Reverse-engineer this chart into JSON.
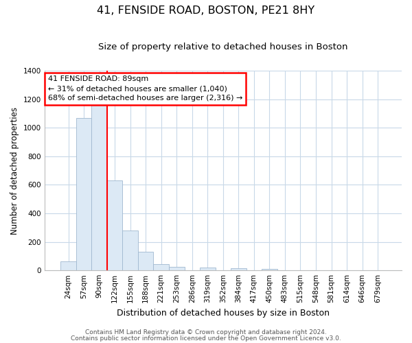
{
  "title": "41, FENSIDE ROAD, BOSTON, PE21 8HY",
  "subtitle": "Size of property relative to detached houses in Boston",
  "xlabel": "Distribution of detached houses by size in Boston",
  "ylabel": "Number of detached properties",
  "bar_labels": [
    "24sqm",
    "57sqm",
    "90sqm",
    "122sqm",
    "155sqm",
    "188sqm",
    "221sqm",
    "253sqm",
    "286sqm",
    "319sqm",
    "352sqm",
    "384sqm",
    "417sqm",
    "450sqm",
    "483sqm",
    "515sqm",
    "548sqm",
    "581sqm",
    "614sqm",
    "646sqm",
    "679sqm"
  ],
  "bar_values": [
    65,
    1070,
    1160,
    630,
    280,
    130,
    45,
    25,
    0,
    20,
    0,
    15,
    0,
    12,
    0,
    0,
    0,
    0,
    0,
    0,
    0
  ],
  "bar_color_fill": "#dce9f5",
  "bar_color_edge": "#a0b8d0",
  "red_line_x": 2,
  "annotation_text_line1": "41 FENSIDE ROAD: 89sqm",
  "annotation_text_line2": "← 31% of detached houses are smaller (1,040)",
  "annotation_text_line3": "68% of semi-detached houses are larger (2,316) →",
  "ylim": [
    0,
    1400
  ],
  "yticks": [
    0,
    200,
    400,
    600,
    800,
    1000,
    1200,
    1400
  ],
  "footer_line1": "Contains HM Land Registry data © Crown copyright and database right 2024.",
  "footer_line2": "Contains public sector information licensed under the Open Government Licence v3.0.",
  "background_color": "#ffffff",
  "grid_color": "#c8d8e8",
  "title_fontsize": 11.5,
  "subtitle_fontsize": 9.5,
  "xlabel_fontsize": 9,
  "ylabel_fontsize": 8.5,
  "tick_fontsize": 7.5,
  "annotation_fontsize": 8,
  "footer_fontsize": 6.5
}
